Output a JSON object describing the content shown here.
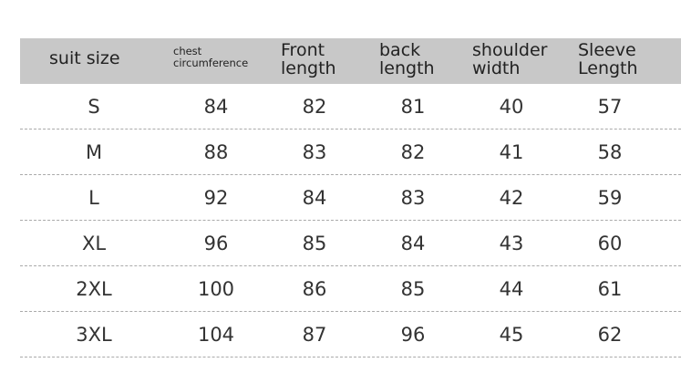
{
  "table": {
    "header": [
      "suit size",
      "chest circumference",
      "Front length",
      "back length",
      "shoulder width",
      "Sleeve Length"
    ],
    "rows": [
      [
        "S",
        84,
        82,
        81,
        40,
        57
      ],
      [
        "M",
        88,
        83,
        82,
        41,
        58
      ],
      [
        "L",
        92,
        84,
        83,
        42,
        59
      ],
      [
        "XL",
        96,
        85,
        84,
        43,
        60
      ],
      [
        "2XL",
        100,
        86,
        85,
        44,
        61
      ],
      [
        "3XL",
        104,
        87,
        96,
        45,
        62
      ]
    ]
  }
}
